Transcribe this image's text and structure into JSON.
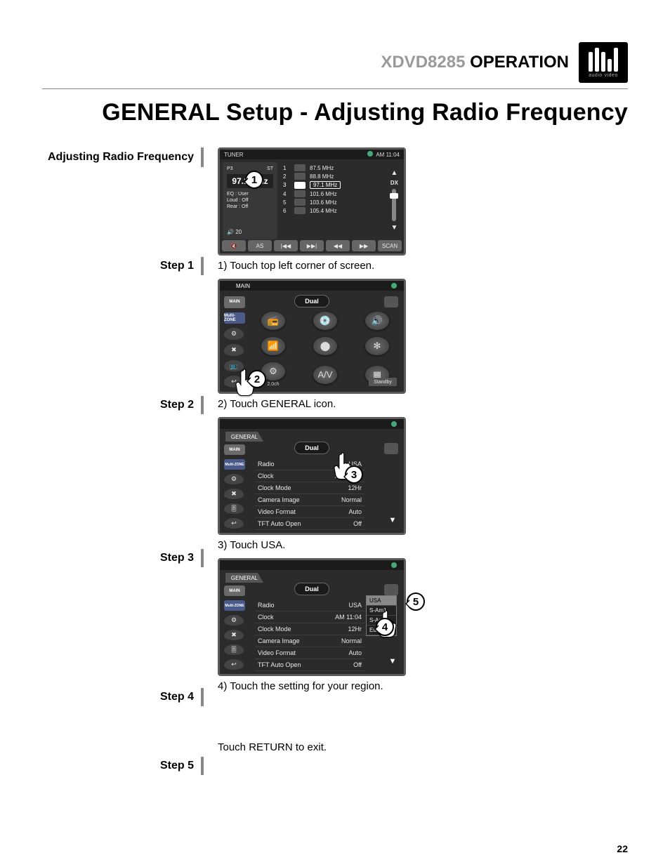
{
  "header": {
    "model": "XDVD8285",
    "op": "OPERATION",
    "logo_sub": "audio·video"
  },
  "title": "GENERAL Setup - Adjusting Radio Frequency",
  "sidebar_title": "Adjusting Radio Frequency",
  "page_number": "22",
  "steps": {
    "s1": {
      "label": "Step 1",
      "caption": "1) Touch top left corner of screen.",
      "callout": "1",
      "clock": "AM 11:04",
      "freq": "97.1 MHz",
      "band": "TUNER",
      "st": "ST",
      "presets": [
        {
          "n": "1",
          "f": "87.5 MHz"
        },
        {
          "n": "2",
          "f": "88.8 MHz"
        },
        {
          "n": "3",
          "f": "97.1 MHz",
          "sel": true
        },
        {
          "n": "4",
          "f": "101.6 MHz"
        },
        {
          "n": "5",
          "f": "103.6 MHz"
        },
        {
          "n": "6",
          "f": "105.4 MHz"
        }
      ],
      "info": [
        "EQ   : User",
        "Loud : Off",
        "Rear : Off"
      ],
      "vol": "20",
      "dx": "DX",
      "bottom": [
        "🔇",
        "AS",
        "|◀◀",
        "▶▶|",
        "◀◀",
        "▶▶",
        "SCAN"
      ]
    },
    "s2": {
      "label": "Step 2",
      "caption": "2) Touch GENERAL icon.",
      "callout": "2",
      "main_tab": "MAIN",
      "brand": "Dual",
      "side": [
        "MAIN",
        "Multi-ZONE"
      ],
      "menu": [
        {
          "icon": "📻",
          "label": ""
        },
        {
          "icon": "💿",
          "label": ""
        },
        {
          "icon": "🔊",
          "label": ""
        },
        {
          "icon": "📶",
          "label": ""
        },
        {
          "icon": "⬤",
          "label": ""
        },
        {
          "icon": "✻",
          "label": ""
        },
        {
          "icon": "⚙",
          "label": "2.0ch"
        },
        {
          "icon": "A/V",
          "label": ""
        },
        {
          "icon": "▦",
          "label": ""
        }
      ],
      "standby": "Standby"
    },
    "s3": {
      "label": "Step 3",
      "caption": "3) Touch USA.",
      "callout": "3",
      "tab": "GENERAL",
      "main": "MAIN",
      "brand": "Dual",
      "rows": [
        {
          "k": "Radio",
          "v": "USA"
        },
        {
          "k": "Clock",
          "v": "AM 11:04"
        },
        {
          "k": "Clock Mode",
          "v": "12Hr"
        },
        {
          "k": "Camera Image",
          "v": "Normal"
        },
        {
          "k": "Video Format",
          "v": "Auto"
        },
        {
          "k": "TFT Auto Open",
          "v": "Off"
        }
      ]
    },
    "s4": {
      "label": "Step 4",
      "caption": "4) Touch the setting for your region.",
      "callout_a": "4",
      "callout_b": "5",
      "tab": "GENERAL",
      "main": "MAIN",
      "brand": "Dual",
      "rows": [
        {
          "k": "Radio",
          "v": "USA"
        },
        {
          "k": "Clock",
          "v": "AM 11:04"
        },
        {
          "k": "Clock Mode",
          "v": "12Hr"
        },
        {
          "k": "Camera Image",
          "v": "Normal"
        },
        {
          "k": "Video Format",
          "v": "Auto"
        },
        {
          "k": "TFT Auto Open",
          "v": "Off"
        }
      ],
      "regions": [
        "USA",
        "S-Am1",
        "S-Am2",
        "Europe"
      ]
    },
    "s5": {
      "label": "Step 5",
      "caption": "Touch RETURN to exit."
    }
  },
  "colors": {
    "screen_bg": "#2b2b2b",
    "screen_border": "#5b5b5b",
    "text": "#000000"
  }
}
